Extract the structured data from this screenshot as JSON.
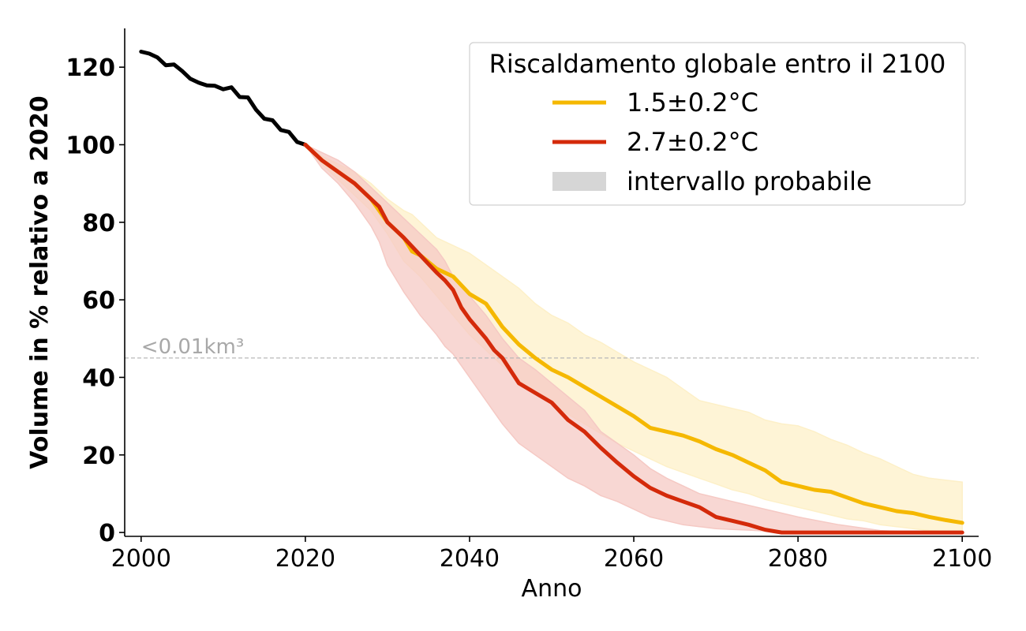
{
  "chart_data": {
    "type": "line",
    "xlabel": "Anno",
    "ylabel": "Volume in % relativo a 2020",
    "xlim": [
      1998,
      2102
    ],
    "ylim": [
      -1,
      130
    ],
    "xticks": [
      2000,
      2020,
      2040,
      2060,
      2080,
      2100
    ],
    "yticks": [
      0,
      20,
      40,
      60,
      80,
      100,
      120
    ],
    "grid": false,
    "legend": {
      "title": "Riscaldamento globale entro il 2100",
      "placement": "top-right",
      "entries": [
        {
          "label": "1.5±0.2°C",
          "color": "#f5b800",
          "kind": "line"
        },
        {
          "label": "2.7±0.2°C",
          "color": "#d42a0a",
          "kind": "line"
        },
        {
          "label": "intervallo probabile",
          "color": "#d6d6d6",
          "kind": "patch"
        }
      ]
    },
    "reference_line": {
      "y": 45,
      "label": "<0.01km³",
      "color": "#b8b8b8"
    },
    "historical": {
      "color": "#000000",
      "x": [
        2000,
        2001,
        2002,
        2003,
        2004,
        2005,
        2006,
        2007,
        2008,
        2009,
        2010,
        2011,
        2012,
        2013,
        2014,
        2015,
        2016,
        2017,
        2018,
        2019,
        2020
      ],
      "y": [
        124,
        123.5,
        122.5,
        120.5,
        120.7,
        119,
        117,
        116,
        115.3,
        115.2,
        114.3,
        114.8,
        112.3,
        112.2,
        109,
        106.7,
        106.3,
        103.8,
        103.3,
        100.7,
        100
      ]
    },
    "series": [
      {
        "name": "1.5±0.2°C",
        "color": "#f5b800",
        "band_color": "#fdf0c8",
        "x": [
          2020,
          2022,
          2024,
          2026,
          2028,
          2030,
          2032,
          2033,
          2034,
          2036,
          2038,
          2040,
          2042,
          2044,
          2046,
          2048,
          2050,
          2052,
          2054,
          2056,
          2058,
          2060,
          2062,
          2064,
          2066,
          2068,
          2070,
          2072,
          2074,
          2076,
          2078,
          2080,
          2082,
          2084,
          2086,
          2088,
          2090,
          2092,
          2094,
          2096,
          2098,
          2100
        ],
        "y": [
          100,
          96,
          93,
          90,
          86,
          80,
          76,
          72.5,
          71.5,
          68,
          66,
          61.5,
          59,
          53,
          48.5,
          45,
          42,
          40,
          37.5,
          35,
          32.5,
          30,
          27,
          26,
          25,
          23.5,
          21.5,
          20,
          18,
          16,
          13,
          12,
          11,
          10.5,
          9,
          7.5,
          6.5,
          5.5,
          5,
          4,
          3.2,
          2.5
        ],
        "lower": [
          100,
          95,
          91,
          87,
          83,
          77,
          70,
          68,
          66,
          61,
          56,
          51,
          47,
          43,
          39.5,
          36,
          33,
          30.5,
          28,
          25.5,
          23,
          21,
          19,
          17,
          15.5,
          14,
          12.5,
          11,
          10,
          8.5,
          7.5,
          6.5,
          5.5,
          4.5,
          3.5,
          3,
          2,
          1.5,
          1,
          0.5,
          0.3,
          0
        ],
        "upper": [
          100,
          97,
          95,
          93,
          90,
          86,
          83,
          82,
          80,
          76,
          74,
          72,
          69,
          66,
          63,
          59,
          56,
          54,
          51,
          49,
          46.5,
          44,
          42,
          40,
          37,
          34,
          33,
          32,
          31,
          29,
          28,
          27.5,
          26,
          24,
          22.5,
          20.5,
          19,
          17,
          15,
          14,
          13.5,
          13
        ]
      },
      {
        "name": "2.7±0.2°C",
        "color": "#d42a0a",
        "band_color": "#f5c9c4",
        "x": [
          2020,
          2022,
          2024,
          2026,
          2028,
          2029,
          2030,
          2032,
          2034,
          2036,
          2037,
          2038,
          2039,
          2040,
          2042,
          2043,
          2044,
          2046,
          2048,
          2050,
          2052,
          2054,
          2056,
          2058,
          2060,
          2062,
          2064,
          2066,
          2068,
          2070,
          2072,
          2074,
          2076,
          2078,
          2080,
          2085,
          2090,
          2095,
          2100
        ],
        "y": [
          100,
          96,
          93,
          90,
          86,
          84,
          80,
          76,
          71.5,
          67,
          65,
          62.5,
          58,
          55,
          50,
          47,
          45,
          38.5,
          36,
          33.5,
          29,
          26,
          21.8,
          18,
          14.5,
          11.5,
          9.5,
          8,
          6.5,
          4,
          3,
          2,
          0.7,
          0,
          0,
          0,
          0,
          0,
          0
        ],
        "lower": [
          100,
          94,
          90,
          85,
          79,
          75,
          69,
          62,
          56,
          51,
          48,
          46,
          43,
          40,
          34,
          31,
          28,
          23,
          20,
          17,
          14,
          12,
          9.5,
          8,
          6,
          4,
          3,
          2,
          1.5,
          1,
          0.8,
          0.6,
          0.4,
          0.3,
          0.2,
          0.1,
          0,
          0,
          0
        ],
        "upper": [
          100,
          98,
          96,
          93,
          89,
          87,
          85,
          81,
          77,
          73,
          70,
          66,
          64,
          61,
          56,
          53,
          50,
          45,
          42,
          38.5,
          35,
          31.5,
          26,
          23,
          20,
          16.5,
          14,
          12,
          10,
          9,
          8,
          7,
          6,
          5,
          4,
          2,
          0.5,
          0,
          0
        ]
      }
    ]
  }
}
